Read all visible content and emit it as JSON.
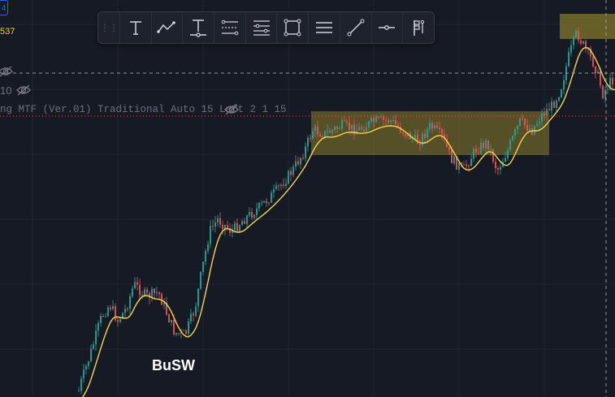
{
  "legend": {
    "top_badge": "4",
    "price_value": "537",
    "indicator_row1_value": "10",
    "indicator_row2_text": "ng MTF (Ver.01) Traditional Auto 15 Left 2 1 15"
  },
  "chart": {
    "annotation_label": "BuSW",
    "zones": [
      "zone-1",
      "zone-2"
    ],
    "colors": {
      "background": "#161a25",
      "grid": "#1f2431",
      "up_candle": "#26a69a",
      "down_candle": "#ef5350",
      "moving_average": "#f5d547",
      "zone_fill": "#8a7d2a",
      "crosshair": "#9598a1",
      "price_line": "#ef5350"
    }
  },
  "toolbar": {
    "tools": [
      {
        "name": "text-tool-icon"
      },
      {
        "name": "path-tool-icon"
      },
      {
        "name": "anchored-text-icon"
      },
      {
        "name": "fib-retracement-icon"
      },
      {
        "name": "fib-extension-icon"
      },
      {
        "name": "rectangle-tool-icon"
      },
      {
        "name": "parallel-lines-icon"
      },
      {
        "name": "trend-line-icon"
      },
      {
        "name": "horizontal-ray-icon"
      },
      {
        "name": "flag-mark-icon"
      }
    ]
  }
}
